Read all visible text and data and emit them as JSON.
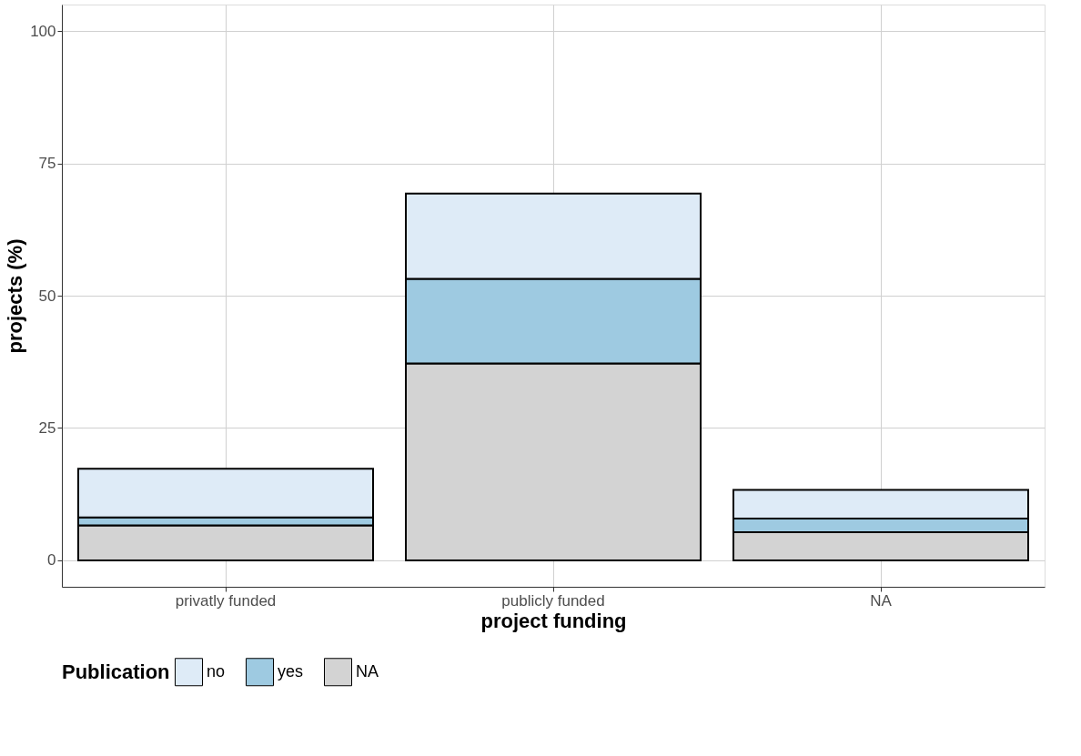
{
  "chart_data": {
    "type": "bar",
    "stacked": true,
    "xlabel": "project funding",
    "ylabel": "projects (%)",
    "legend_title": "Publication",
    "categories": [
      "privatly funded",
      "publicly funded",
      "NA"
    ],
    "series": [
      {
        "name": "NA",
        "color": "#d3d3d3",
        "values": [
          6.6,
          37.2,
          5.3
        ]
      },
      {
        "name": "yes",
        "color": "#9ecae1",
        "values": [
          1.5,
          16.0,
          2.6
        ]
      },
      {
        "name": "no",
        "color": "#deebf7",
        "values": [
          9.2,
          16.1,
          5.4
        ]
      }
    ],
    "ylim": [
      -5,
      105
    ],
    "yticks": [
      0,
      25,
      50,
      75,
      100
    ],
    "grid": true,
    "legend": "bottom"
  }
}
